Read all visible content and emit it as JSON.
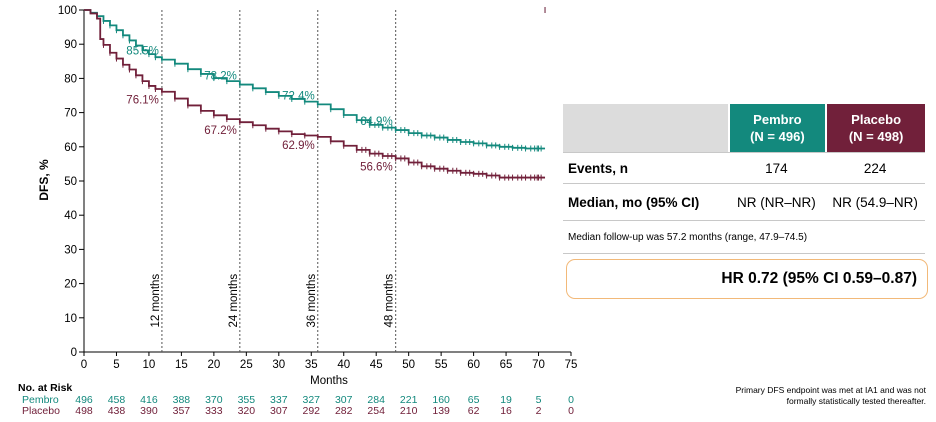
{
  "colors": {
    "pembro": "#13897d",
    "placebo": "#71203a",
    "hr_border": "#f2b979"
  },
  "chart_data": {
    "type": "line",
    "subtype": "kaplan-meier",
    "ylabel": "DFS, %",
    "xlabel": "Months",
    "xlim": [
      0,
      75
    ],
    "ylim": [
      0,
      100
    ],
    "x_ticks": [
      0,
      5,
      10,
      15,
      20,
      25,
      30,
      35,
      40,
      45,
      50,
      55,
      60,
      65,
      70,
      75
    ],
    "y_ticks": [
      0,
      10,
      20,
      30,
      40,
      50,
      60,
      70,
      80,
      90,
      100
    ],
    "grid": false,
    "landmarks": [
      {
        "x": 12,
        "label": "12 months"
      },
      {
        "x": 24,
        "label": "24 months"
      },
      {
        "x": 36,
        "label": "36 months"
      },
      {
        "x": 48,
        "label": "48 months"
      }
    ],
    "series": [
      {
        "name": "Pembro",
        "x": [
          0,
          1,
          2,
          3,
          4,
          5,
          6,
          7,
          8,
          9,
          10,
          11,
          12,
          14,
          16,
          18,
          20,
          22,
          24,
          26,
          28,
          30,
          32,
          34,
          36,
          38,
          40,
          42,
          44,
          46,
          48,
          50,
          52,
          54,
          56,
          58,
          60,
          62,
          64,
          66,
          68,
          70,
          71
        ],
        "y": [
          100,
          99.2,
          98.2,
          96.8,
          95.5,
          94.1,
          92.6,
          91.1,
          89.6,
          88.2,
          87.1,
          86.2,
          85.5,
          84.3,
          82.7,
          81.3,
          80.1,
          79.2,
          78.2,
          77.1,
          76.0,
          74.9,
          74.0,
          73.2,
          72.4,
          71.0,
          69.3,
          67.8,
          66.4,
          65.6,
          64.9,
          64.0,
          63.3,
          62.7,
          62.0,
          61.4,
          61.0,
          60.4,
          60.0,
          59.7,
          59.5,
          59.5,
          59.5
        ],
        "landmark_labels": [
          {
            "x": 12,
            "y": 85.5,
            "text": "85.5%"
          },
          {
            "x": 24,
            "y": 78.2,
            "text": "78.2%"
          },
          {
            "x": 36,
            "y": 72.4,
            "text": "72.4%"
          },
          {
            "x": 48,
            "y": 64.9,
            "text": "64.9%"
          }
        ]
      },
      {
        "name": "Placebo",
        "x": [
          0,
          1,
          2,
          2.5,
          3,
          4,
          5,
          6,
          7,
          8,
          9,
          10,
          11,
          12,
          14,
          16,
          18,
          20,
          22,
          24,
          26,
          28,
          30,
          32,
          34,
          36,
          38,
          40,
          42,
          44,
          46,
          48,
          50,
          52,
          54,
          56,
          58,
          60,
          62,
          64,
          66,
          68,
          70,
          71
        ],
        "y": [
          100,
          99.0,
          97.5,
          91.5,
          89.8,
          87.5,
          85.8,
          84.0,
          82.6,
          80.9,
          79.2,
          77.8,
          76.9,
          76.1,
          74.1,
          72.1,
          70.5,
          69.2,
          68.1,
          67.2,
          66.3,
          65.3,
          64.5,
          63.7,
          63.3,
          62.9,
          61.6,
          60.3,
          59.1,
          58.0,
          57.3,
          56.6,
          55.4,
          54.3,
          53.6,
          53.0,
          52.4,
          52.1,
          51.6,
          51.0,
          51.0,
          51.0,
          51.0,
          51.0
        ],
        "landmark_labels": [
          {
            "x": 12,
            "y": 76.1,
            "text": "76.1%"
          },
          {
            "x": 24,
            "y": 67.2,
            "text": "67.2%"
          },
          {
            "x": 36,
            "y": 62.9,
            "text": "62.9%"
          },
          {
            "x": 48,
            "y": 56.6,
            "text": "56.6%"
          }
        ]
      }
    ],
    "risk_table": {
      "title": "No. at Risk",
      "x": [
        0,
        5,
        10,
        15,
        20,
        25,
        30,
        35,
        40,
        45,
        50,
        55,
        60,
        65,
        70,
        75
      ],
      "rows": [
        {
          "name": "Pembro",
          "values": [
            "496",
            "458",
            "416",
            "388",
            "370",
            "355",
            "337",
            "327",
            "307",
            "284",
            "221",
            "160",
            "65",
            "19",
            "5",
            "0"
          ]
        },
        {
          "name": "Placebo",
          "values": [
            "498",
            "438",
            "390",
            "357",
            "333",
            "320",
            "307",
            "292",
            "282",
            "254",
            "210",
            "139",
            "62",
            "16",
            "2",
            "0"
          ]
        }
      ]
    }
  },
  "table": {
    "pembro_name": "Pembro",
    "pembro_n": "(N = 496)",
    "placebo_name": "Placebo",
    "placebo_n": "(N = 498)",
    "events_label": "Events, n",
    "events_pembro": "174",
    "events_placebo": "224",
    "median_label": "Median, mo (95% CI)",
    "median_pembro": "NR (NR–NR)",
    "median_placebo": "NR (54.9–NR)",
    "followup_note": "Median follow-up was 57.2 months (range, 47.9–74.5)"
  },
  "hazard_ratio": "HR 0.72 (95%  CI 0.59–0.87)",
  "bottom_note_line1": "Primary DFS endpoint was met at IA1 and was not",
  "bottom_note_line2": "formally statistically tested thereafter."
}
